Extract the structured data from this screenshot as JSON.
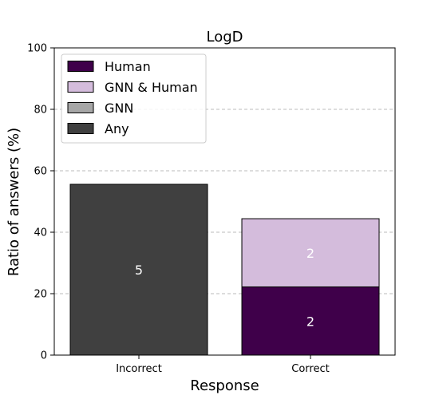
{
  "chart_data": {
    "type": "bar",
    "stacked": true,
    "title": "LogD",
    "xlabel": "Response",
    "ylabel": "Ratio of answers (%)",
    "ylim": [
      0,
      100
    ],
    "yticks": [
      "0",
      "20",
      "40",
      "60",
      "80",
      "100"
    ],
    "categories": [
      "Incorrect",
      "Correct"
    ],
    "grid": "horizontal-dashed",
    "legend_position": "top-left",
    "series": [
      {
        "name": "Human",
        "color": "#3f004a",
        "values": [
          0,
          22.2
        ],
        "labels": [
          "",
          "2"
        ]
      },
      {
        "name": "GNN & Human",
        "color": "#d4bcdc",
        "values": [
          0,
          22.2
        ],
        "labels": [
          "",
          "2"
        ]
      },
      {
        "name": "GNN",
        "color": "#a6a6a6",
        "values": [
          0,
          0
        ],
        "labels": [
          "",
          ""
        ]
      },
      {
        "name": "Any",
        "color": "#404040",
        "values": [
          55.6,
          0
        ],
        "labels": [
          "5",
          ""
        ]
      }
    ]
  }
}
